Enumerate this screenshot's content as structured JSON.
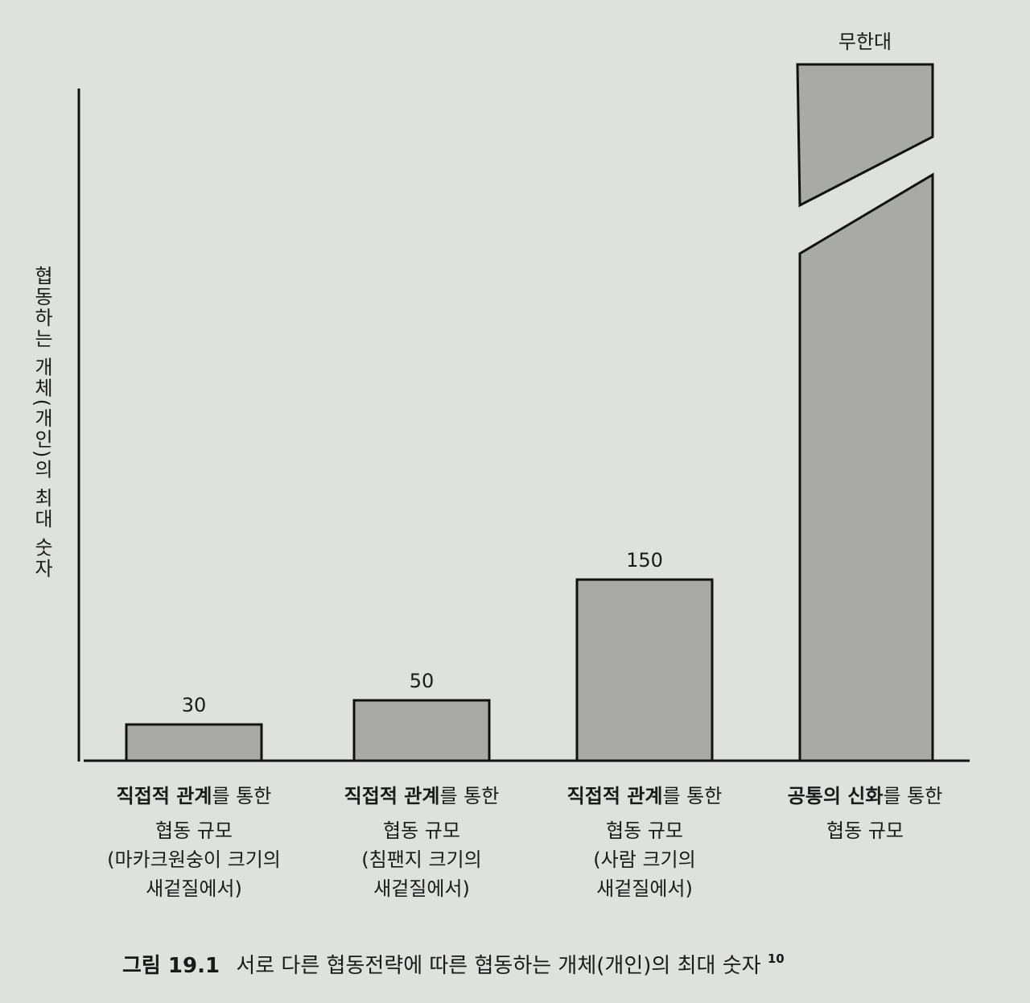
{
  "chart_data": {
    "type": "bar",
    "y_label": "협동하는 개체(개인)의 최대 숫자",
    "categories": [
      {
        "bold": "직접적 관계",
        "text": "를 통한",
        "lines": [
          "협동 규모",
          "(마카크원숭이 크기의",
          "새겉질에서)"
        ]
      },
      {
        "bold": "직접적 관계",
        "text": "를 통한",
        "lines": [
          "협동 규모",
          "(침팬지 크기의",
          "새겉질에서)"
        ]
      },
      {
        "bold": "직접적 관계",
        "text": "를 통한",
        "lines": [
          "협동 규모",
          "(사람 크기의",
          "새겉질에서)"
        ]
      },
      {
        "bold": "공통의 신화",
        "text": "를 통한",
        "lines": [
          "협동 규모"
        ]
      }
    ],
    "values": [
      30,
      50,
      150,
      null
    ],
    "value_labels": [
      "30",
      "50",
      "150",
      "무한대"
    ],
    "color": "#a9a9a6",
    "ylim": [
      0,
      560
    ],
    "caption": {
      "number": "그림 19.1",
      "text": "서로 다른 협동전략에 따른 협동하는 개체(개인)의 최대 숫자",
      "note": "10"
    }
  }
}
